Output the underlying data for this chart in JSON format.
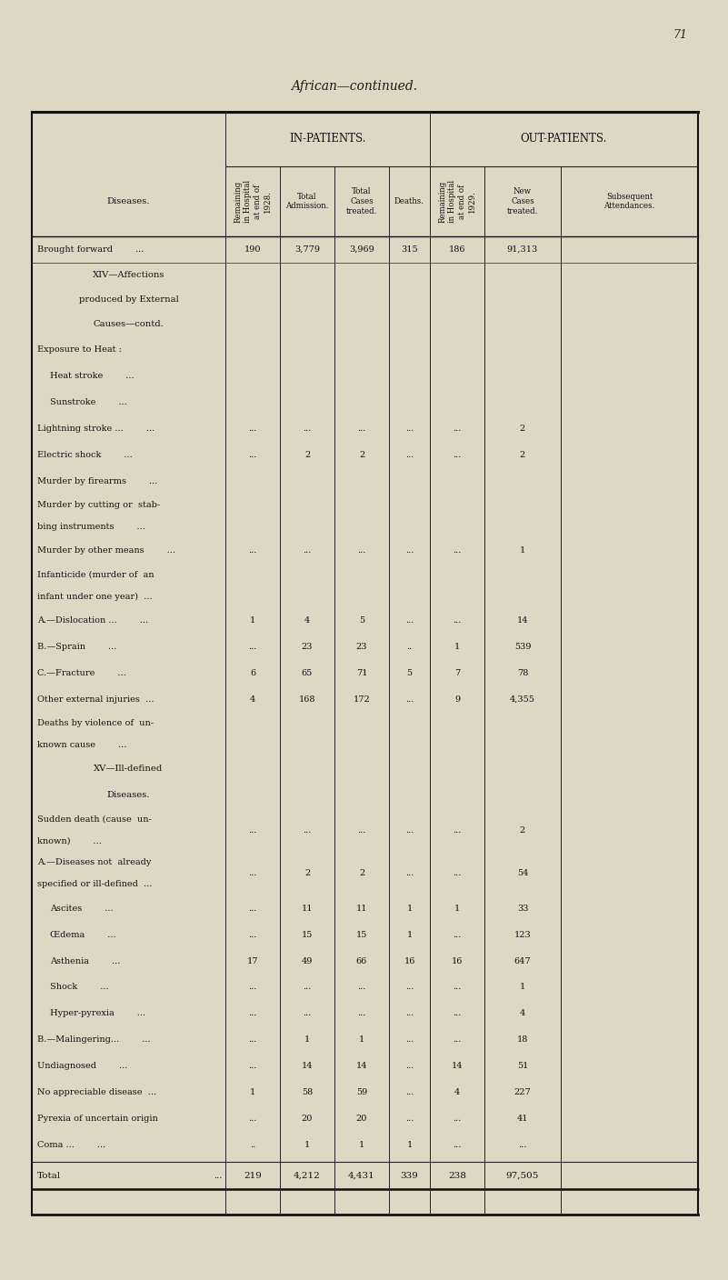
{
  "page_number": "71",
  "title": "African—continued.",
  "bg_color": "#ddd8c4",
  "col_label": "Diseases.",
  "subheader_cols": [
    "Remaining\nin Hospital\nat end of\n1928.",
    "Total\nAdmission.",
    "Total\nCases\ntreated.",
    "Deaths.",
    "Remaining\nin Hospital\nat end of\n1929.",
    "New\nCases\ntreated.",
    "Subsequent\nAttendances."
  ],
  "rows": [
    {
      "label": "Brought forward        ...",
      "indent": 0,
      "section": false,
      "multiline": false,
      "d0": "190",
      "d1": "3,779",
      "d2": "3,969",
      "d3": "315",
      "d4": "186",
      "d5": "91,313",
      "d6": "",
      "show_dots": false
    },
    {
      "label": "XIV—Affections\nproduced by External\nCauses—contd.",
      "indent": 0,
      "section": true,
      "multiline": true,
      "d0": "",
      "d1": "",
      "d2": "",
      "d3": "",
      "d4": "",
      "d5": "",
      "d6": "",
      "show_dots": false
    },
    {
      "label": "Exposure to Heat :",
      "indent": 0,
      "section": false,
      "multiline": false,
      "d0": "",
      "d1": "",
      "d2": "",
      "d3": "",
      "d4": "",
      "d5": "",
      "d6": "",
      "show_dots": false
    },
    {
      "label": "Heat stroke        ...",
      "indent": 1,
      "section": false,
      "multiline": false,
      "d0": "",
      "d1": "",
      "d2": "",
      "d3": "",
      "d4": "",
      "d5": "",
      "d6": "",
      "show_dots": false
    },
    {
      "label": "Sunstroke        ...",
      "indent": 1,
      "section": false,
      "multiline": false,
      "d0": "",
      "d1": "",
      "d2": "",
      "d3": "",
      "d4": "",
      "d5": "",
      "d6": "",
      "show_dots": false
    },
    {
      "label": "Lightning stroke ...        ...",
      "indent": 0,
      "section": false,
      "multiline": false,
      "d0": "...",
      "d1": "...",
      "d2": "...",
      "d3": "...",
      "d4": "...",
      "d5": "2",
      "d6": "",
      "show_dots": false
    },
    {
      "label": "Electric shock        ...",
      "indent": 0,
      "section": false,
      "multiline": false,
      "d0": "...",
      "d1": "2",
      "d2": "2",
      "d3": "...",
      "d4": "...",
      "d5": "2",
      "d6": "",
      "show_dots": false
    },
    {
      "label": "Murder by firearms        ...",
      "indent": 0,
      "section": false,
      "multiline": false,
      "d0": "",
      "d1": "",
      "d2": "",
      "d3": "",
      "d4": "",
      "d5": "",
      "d6": "",
      "show_dots": false
    },
    {
      "label": "Murder by cutting or  stab-\nbing instruments        ...",
      "indent": 0,
      "section": false,
      "multiline": true,
      "d0": "",
      "d1": "",
      "d2": "",
      "d3": "",
      "d4": "",
      "d5": "",
      "d6": "",
      "show_dots": false
    },
    {
      "label": "Murder by other means        ...",
      "indent": 0,
      "section": false,
      "multiline": false,
      "d0": "...",
      "d1": "...",
      "d2": "...",
      "d3": "...",
      "d4": "...",
      "d5": "1",
      "d6": "",
      "show_dots": false
    },
    {
      "label": "Infanticide (murder of  an\ninfant under one year)  ...",
      "indent": 0,
      "section": false,
      "multiline": true,
      "d0": "",
      "d1": "",
      "d2": "",
      "d3": "",
      "d4": "",
      "d5": "",
      "d6": "",
      "show_dots": false
    },
    {
      "label": "A.—Dislocation ...        ...",
      "indent": 0,
      "section": false,
      "multiline": false,
      "d0": "1",
      "d1": "4",
      "d2": "5",
      "d3": "...",
      "d4": "...",
      "d5": "14",
      "d6": "",
      "show_dots": false
    },
    {
      "label": "B.—Sprain        ...",
      "indent": 0,
      "section": false,
      "multiline": false,
      "d0": "...",
      "d1": "23",
      "d2": "23",
      "d3": "..",
      "d4": "1",
      "d5": "539",
      "d6": "",
      "show_dots": false
    },
    {
      "label": "C.—Fracture        ...",
      "indent": 0,
      "section": false,
      "multiline": false,
      "d0": "6",
      "d1": "65",
      "d2": "71",
      "d3": "5",
      "d4": "7",
      "d5": "78",
      "d6": "",
      "show_dots": false
    },
    {
      "label": "Other external injuries  ...",
      "indent": 0,
      "section": false,
      "multiline": false,
      "d0": "4",
      "d1": "168",
      "d2": "172",
      "d3": "...",
      "d4": "9",
      "d5": "4,355",
      "d6": "",
      "show_dots": false
    },
    {
      "label": "Deaths by violence of  un-\nknown cause        ...",
      "indent": 0,
      "section": false,
      "multiline": true,
      "d0": "",
      "d1": "",
      "d2": "",
      "d3": "",
      "d4": "",
      "d5": "",
      "d6": "",
      "show_dots": false
    },
    {
      "label": "XV—Ill-defined\nDiseases.",
      "indent": 0,
      "section": true,
      "multiline": true,
      "d0": "",
      "d1": "",
      "d2": "",
      "d3": "",
      "d4": "",
      "d5": "",
      "d6": "",
      "show_dots": false
    },
    {
      "label": "Sudden death (cause  un-\nknown)        ...",
      "indent": 0,
      "section": false,
      "multiline": true,
      "d0": "...",
      "d1": "...",
      "d2": "...",
      "d3": "...",
      "d4": "...",
      "d5": "2",
      "d6": "",
      "show_dots": false
    },
    {
      "label": "A.—Diseases not  already\nspecified or ill-defined  ...",
      "indent": 0,
      "section": false,
      "multiline": true,
      "d0": "...",
      "d1": "2",
      "d2": "2",
      "d3": "...",
      "d4": "...",
      "d5": "54",
      "d6": "",
      "show_dots": false
    },
    {
      "label": "Ascites        ...",
      "indent": 1,
      "section": false,
      "multiline": false,
      "d0": "...",
      "d1": "11",
      "d2": "11",
      "d3": "1",
      "d4": "1",
      "d5": "33",
      "d6": "",
      "show_dots": false
    },
    {
      "label": "Œdema        ...",
      "indent": 1,
      "section": false,
      "multiline": false,
      "d0": "...",
      "d1": "15",
      "d2": "15",
      "d3": "1",
      "d4": "...",
      "d5": "123",
      "d6": "",
      "show_dots": false
    },
    {
      "label": "Asthenia        ...",
      "indent": 1,
      "section": false,
      "multiline": false,
      "d0": "17",
      "d1": "49",
      "d2": "66",
      "d3": "16",
      "d4": "16",
      "d5": "647",
      "d6": "",
      "show_dots": false
    },
    {
      "label": "Shock        ...",
      "indent": 1,
      "section": false,
      "multiline": false,
      "d0": "...",
      "d1": "...",
      "d2": "...",
      "d3": "...",
      "d4": "...",
      "d5": "1",
      "d6": "",
      "show_dots": false
    },
    {
      "label": "Hyper-pyrexia        ...",
      "indent": 1,
      "section": false,
      "multiline": false,
      "d0": "...",
      "d1": "...",
      "d2": "...",
      "d3": "...",
      "d4": "...",
      "d5": "4",
      "d6": "",
      "show_dots": false
    },
    {
      "label": "B.—Malingering...        ...",
      "indent": 0,
      "section": false,
      "multiline": false,
      "d0": "...",
      "d1": "1",
      "d2": "1",
      "d3": "...",
      "d4": "...",
      "d5": "18",
      "d6": "",
      "show_dots": false
    },
    {
      "label": "Undiagnosed        ...",
      "indent": 0,
      "section": false,
      "multiline": false,
      "d0": "...",
      "d1": "14",
      "d2": "14",
      "d3": "...",
      "d4": "14",
      "d5": "51",
      "d6": "",
      "show_dots": false
    },
    {
      "label": "No appreciable disease  ...",
      "indent": 0,
      "section": false,
      "multiline": false,
      "d0": "1",
      "d1": "58",
      "d2": "59",
      "d3": "...",
      "d4": "4",
      "d5": "227",
      "d6": "",
      "show_dots": false
    },
    {
      "label": "Pyrexia of uncertain origin",
      "indent": 0,
      "section": false,
      "multiline": false,
      "d0": "...",
      "d1": "20",
      "d2": "20",
      "d3": "...",
      "d4": "...",
      "d5": "41",
      "d6": "",
      "show_dots": false
    },
    {
      "label": "Coma ...        ...",
      "indent": 0,
      "section": false,
      "multiline": false,
      "d0": "..",
      "d1": "1",
      "d2": "1",
      "d3": "1",
      "d4": "...",
      "d5": "...",
      "d6": "",
      "show_dots": false
    }
  ],
  "total_label": "Total",
  "total_dots": "...",
  "total_data": [
    "219",
    "4,212",
    "4,431",
    "339",
    "238",
    "97,505",
    ""
  ]
}
